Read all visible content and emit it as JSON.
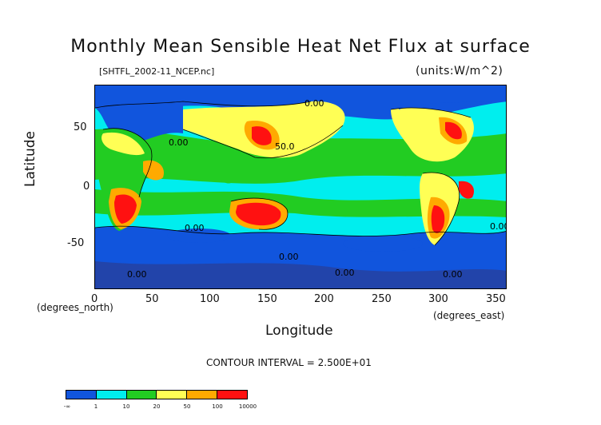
{
  "title": "Monthly Mean Sensible Heat Net Flux at surface",
  "source_file": "[SHTFL_2002-11_NCEP.nc]",
  "units": "(units:W/m^2)",
  "axes": {
    "x_label": "Longitude",
    "y_label": "Latitude",
    "x_units": "(degrees_east)",
    "y_units": "(degrees_north)",
    "x_ticks": [
      "0",
      "50",
      "100",
      "150",
      "200",
      "250",
      "300",
      "350"
    ],
    "y_ticks": [
      "50",
      "0",
      "-50"
    ]
  },
  "contour_interval": "CONTOUR INTERVAL = 2.500E+01",
  "contour_labels": [
    "0.00",
    "0.00",
    "50.0",
    "0.00",
    "0.00",
    "0.00",
    "0.00",
    "0.00",
    "0.00"
  ],
  "colorbar": {
    "labels": [
      "-∞",
      "1",
      "10",
      "20",
      "50",
      "100",
      "10000"
    ],
    "colors": [
      "#1155dd",
      "#00eeee",
      "#22cc22",
      "#ffff55",
      "#ffaa00",
      "#ff1111"
    ]
  },
  "chart_data": {
    "type": "heatmap",
    "title": "Monthly Mean Sensible Heat Net Flux at surface",
    "xlabel": "Longitude",
    "ylabel": "Latitude",
    "xlim": [
      0,
      360
    ],
    "ylim": [
      -90,
      90
    ],
    "x_ticks": [
      0,
      50,
      100,
      150,
      200,
      250,
      300,
      350
    ],
    "y_ticks": [
      50,
      0,
      -50
    ],
    "levels": [
      "-∞",
      1,
      10,
      20,
      50,
      100,
      10000
    ],
    "units": "W/m^2",
    "month": "2002-11"
  }
}
